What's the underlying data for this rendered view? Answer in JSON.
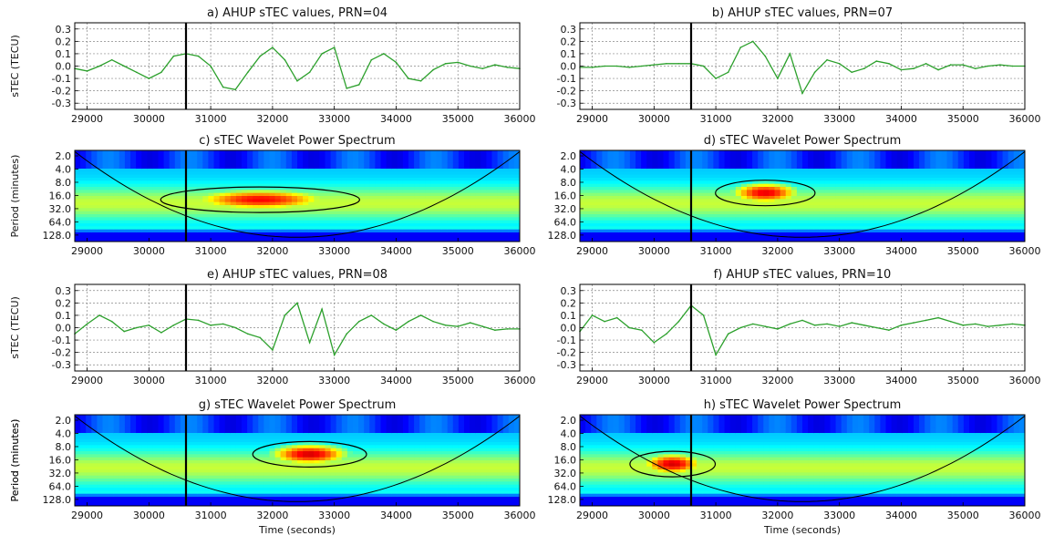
{
  "figure": {
    "x_axis_label": "Time (seconds)",
    "y_label_time_series": "sTEC (TECU)",
    "y_label_wavelet": "Period (minutes)"
  },
  "chart_data": [
    {
      "id": "a",
      "type": "line",
      "title": "a) AHUP sTEC values, PRN=04",
      "xlim": [
        28800,
        36000
      ],
      "ylim": [
        -0.35,
        0.35
      ],
      "x_ticks": [
        29000,
        30000,
        31000,
        32000,
        33000,
        34000,
        35000,
        36000
      ],
      "y_ticks": [
        -0.3,
        -0.2,
        -0.1,
        0.0,
        0.1,
        0.2,
        0.3
      ],
      "ylabel": "sTEC (TECU)",
      "xlabel": "",
      "grid": true,
      "event_line_x": 30600,
      "line_color": "#2ca02c",
      "x": [
        28800,
        29000,
        29200,
        29400,
        29600,
        29800,
        30000,
        30200,
        30400,
        30600,
        30800,
        31000,
        31200,
        31400,
        31600,
        31800,
        32000,
        32200,
        32400,
        32600,
        32800,
        33000,
        33200,
        33400,
        33600,
        33800,
        34000,
        34200,
        34400,
        34600,
        34800,
        35000,
        35200,
        35400,
        35600,
        35800,
        36000
      ],
      "y": [
        -0.02,
        -0.04,
        0.0,
        0.05,
        0.0,
        -0.05,
        -0.1,
        -0.05,
        0.08,
        0.1,
        0.08,
        0.0,
        -0.17,
        -0.19,
        -0.05,
        0.08,
        0.15,
        0.05,
        -0.12,
        -0.05,
        0.1,
        0.15,
        -0.18,
        -0.15,
        0.05,
        0.1,
        0.03,
        -0.1,
        -0.12,
        -0.03,
        0.02,
        0.03,
        0.0,
        -0.02,
        0.01,
        -0.01,
        -0.02
      ]
    },
    {
      "id": "b",
      "type": "line",
      "title": "b) AHUP sTEC values, PRN=07",
      "xlim": [
        28800,
        36000
      ],
      "ylim": [
        -0.35,
        0.35
      ],
      "x_ticks": [
        29000,
        30000,
        31000,
        32000,
        33000,
        34000,
        35000,
        36000
      ],
      "y_ticks": [
        -0.3,
        -0.2,
        -0.1,
        0.0,
        0.1,
        0.2,
        0.3
      ],
      "ylabel": "",
      "xlabel": "",
      "grid": true,
      "event_line_x": 30600,
      "line_color": "#2ca02c",
      "x": [
        28800,
        29000,
        29200,
        29400,
        29600,
        29800,
        30000,
        30200,
        30400,
        30600,
        30800,
        31000,
        31200,
        31400,
        31600,
        31800,
        32000,
        32200,
        32400,
        32600,
        32800,
        33000,
        33200,
        33400,
        33600,
        33800,
        34000,
        34200,
        34400,
        34600,
        34800,
        35000,
        35200,
        35400,
        35600,
        35800,
        36000
      ],
      "y": [
        -0.01,
        -0.01,
        0.0,
        0.0,
        -0.01,
        0.0,
        0.01,
        0.02,
        0.02,
        0.02,
        0.0,
        -0.1,
        -0.05,
        0.15,
        0.2,
        0.08,
        -0.1,
        0.1,
        -0.22,
        -0.05,
        0.05,
        0.02,
        -0.05,
        -0.02,
        0.04,
        0.02,
        -0.03,
        -0.02,
        0.02,
        -0.03,
        0.01,
        0.01,
        -0.02,
        0.0,
        0.01,
        0.0,
        0.0
      ]
    },
    {
      "id": "c",
      "type": "heatmap",
      "title": "c) sTEC Wavelet Power Spectrum",
      "xlim": [
        28800,
        36000
      ],
      "y_scale": "log2",
      "y_ticks": [
        2.0,
        4.0,
        8.0,
        16.0,
        32.0,
        64.0,
        128.0
      ],
      "ylim_top": 1.5,
      "ylim_bottom": 180,
      "x_ticks": [
        29000,
        30000,
        31000,
        32000,
        33000,
        34000,
        35000,
        36000
      ],
      "ylabel": "Period (minutes)",
      "xlabel": "",
      "event_line_x": 30600,
      "colormap": "jet",
      "dominant_period_minutes": 20,
      "peak_time_seconds": 31800,
      "peak_span_seconds": 1400,
      "peak_intensity": 0.88
    },
    {
      "id": "d",
      "type": "heatmap",
      "title": "d) sTEC Wavelet Power Spectrum",
      "xlim": [
        28800,
        36000
      ],
      "y_scale": "log2",
      "y_ticks": [
        2.0,
        4.0,
        8.0,
        16.0,
        32.0,
        64.0,
        128.0
      ],
      "ylim_top": 1.5,
      "ylim_bottom": 180,
      "x_ticks": [
        29000,
        30000,
        31000,
        32000,
        33000,
        34000,
        35000,
        36000
      ],
      "ylabel": "",
      "xlabel": "",
      "event_line_x": 30600,
      "colormap": "jet",
      "dominant_period_minutes": 14,
      "peak_time_seconds": 31800,
      "peak_span_seconds": 700,
      "peak_intensity": 0.9
    },
    {
      "id": "e",
      "type": "line",
      "title": "e) AHUP sTEC values, PRN=08",
      "xlim": [
        28800,
        36000
      ],
      "ylim": [
        -0.35,
        0.35
      ],
      "x_ticks": [
        29000,
        30000,
        31000,
        32000,
        33000,
        34000,
        35000,
        36000
      ],
      "y_ticks": [
        -0.3,
        -0.2,
        -0.1,
        0.0,
        0.1,
        0.2,
        0.3
      ],
      "ylabel": "sTEC (TECU)",
      "xlabel": "",
      "grid": true,
      "event_line_x": 30600,
      "line_color": "#2ca02c",
      "x": [
        28800,
        29000,
        29200,
        29400,
        29600,
        29800,
        30000,
        30200,
        30400,
        30600,
        30800,
        31000,
        31200,
        31400,
        31600,
        31800,
        32000,
        32200,
        32400,
        32600,
        32800,
        33000,
        33200,
        33400,
        33600,
        33800,
        34000,
        34200,
        34400,
        34600,
        34800,
        35000,
        35200,
        35400,
        35600,
        35800,
        36000
      ],
      "y": [
        -0.05,
        0.03,
        0.1,
        0.05,
        -0.03,
        0.0,
        0.02,
        -0.04,
        0.02,
        0.07,
        0.06,
        0.02,
        0.03,
        0.0,
        -0.05,
        -0.08,
        -0.18,
        0.1,
        0.2,
        -0.12,
        0.15,
        -0.22,
        -0.05,
        0.05,
        0.1,
        0.03,
        -0.02,
        0.05,
        0.1,
        0.05,
        0.02,
        0.01,
        0.04,
        0.01,
        -0.02,
        -0.01,
        -0.01
      ]
    },
    {
      "id": "f",
      "type": "line",
      "title": "f) AHUP sTEC values, PRN=10",
      "xlim": [
        28800,
        36000
      ],
      "ylim": [
        -0.35,
        0.35
      ],
      "x_ticks": [
        29000,
        30000,
        31000,
        32000,
        33000,
        34000,
        35000,
        36000
      ],
      "y_ticks": [
        -0.3,
        -0.2,
        -0.1,
        0.0,
        0.1,
        0.2,
        0.3
      ],
      "ylabel": "",
      "xlabel": "",
      "grid": true,
      "event_line_x": 30600,
      "line_color": "#2ca02c",
      "x": [
        28800,
        29000,
        29200,
        29400,
        29600,
        29800,
        30000,
        30200,
        30400,
        30600,
        30800,
        31000,
        31200,
        31400,
        31600,
        31800,
        32000,
        32200,
        32400,
        32600,
        32800,
        33000,
        33200,
        33400,
        33600,
        33800,
        34000,
        34200,
        34400,
        34600,
        34800,
        35000,
        35200,
        35400,
        35600,
        35800,
        36000
      ],
      "y": [
        -0.03,
        0.1,
        0.05,
        0.08,
        0.0,
        -0.02,
        -0.12,
        -0.05,
        0.05,
        0.18,
        0.1,
        -0.22,
        -0.05,
        0.0,
        0.03,
        0.01,
        -0.01,
        0.03,
        0.06,
        0.02,
        0.03,
        0.01,
        0.04,
        0.02,
        0.0,
        -0.02,
        0.02,
        0.04,
        0.06,
        0.08,
        0.05,
        0.02,
        0.03,
        0.01,
        0.02,
        0.03,
        0.02
      ]
    },
    {
      "id": "g",
      "type": "heatmap",
      "title": "g) sTEC Wavelet Power Spectrum",
      "xlim": [
        28800,
        36000
      ],
      "y_scale": "log2",
      "y_ticks": [
        2.0,
        4.0,
        8.0,
        16.0,
        32.0,
        64.0,
        128.0
      ],
      "ylim_top": 1.5,
      "ylim_bottom": 180,
      "x_ticks": [
        29000,
        30000,
        31000,
        32000,
        33000,
        34000,
        35000,
        36000
      ],
      "ylabel": "Period (minutes)",
      "xlabel": "Time (seconds)",
      "event_line_x": 30600,
      "colormap": "jet",
      "dominant_period_minutes": 12,
      "peak_time_seconds": 32600,
      "peak_span_seconds": 800,
      "peak_intensity": 0.92
    },
    {
      "id": "h",
      "type": "heatmap",
      "title": "h) sTEC Wavelet Power Spectrum",
      "xlim": [
        28800,
        36000
      ],
      "y_scale": "log2",
      "y_ticks": [
        2.0,
        4.0,
        8.0,
        16.0,
        32.0,
        64.0,
        128.0
      ],
      "ylim_top": 1.5,
      "ylim_bottom": 180,
      "x_ticks": [
        29000,
        30000,
        31000,
        32000,
        33000,
        34000,
        35000,
        36000
      ],
      "ylabel": "Period (minutes)",
      "xlabel": "Time (seconds)",
      "event_line_x": 30600,
      "colormap": "jet",
      "dominant_period_minutes": 20,
      "peak_time_seconds": 30300,
      "peak_span_seconds": 600,
      "peak_intensity": 0.92
    }
  ]
}
